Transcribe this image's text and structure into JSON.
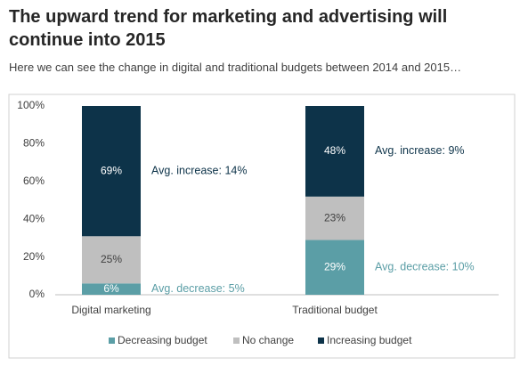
{
  "chart_data": {
    "type": "stacked_bar",
    "title": "The upward trend for marketing and advertising will continue into 2015",
    "subtitle": "Here we can see the change in digital and traditional budgets between 2014 and 2015…",
    "categories": [
      "Digital marketing",
      "Traditional budget"
    ],
    "series": [
      {
        "name": "Decreasing budget",
        "color": "#5b9ea6",
        "values": [
          6,
          29
        ],
        "value_labels": [
          "6%",
          "29%"
        ]
      },
      {
        "name": "No change",
        "color": "#bfbfbf",
        "values": [
          25,
          23
        ],
        "value_labels": [
          "25%",
          "23%"
        ]
      },
      {
        "name": "Increasing budget",
        "color": "#0d3349",
        "values": [
          69,
          48
        ],
        "value_labels": [
          "69%",
          "48%"
        ]
      }
    ],
    "annotations": [
      "Avg. increase: 14%",
      "Avg. decrease: 5%",
      "Avg. increase: 9%",
      "Avg. decrease: 10%"
    ],
    "ylim": [
      0,
      100
    ],
    "yticks": [
      {
        "value": 0,
        "label": "0%"
      },
      {
        "value": 20,
        "label": "20%"
      },
      {
        "value": 40,
        "label": "40%"
      },
      {
        "value": 60,
        "label": "60%"
      },
      {
        "value": 80,
        "label": "80%"
      },
      {
        "value": 100,
        "label": "100%"
      }
    ],
    "grid": false,
    "legend": "bottom"
  }
}
